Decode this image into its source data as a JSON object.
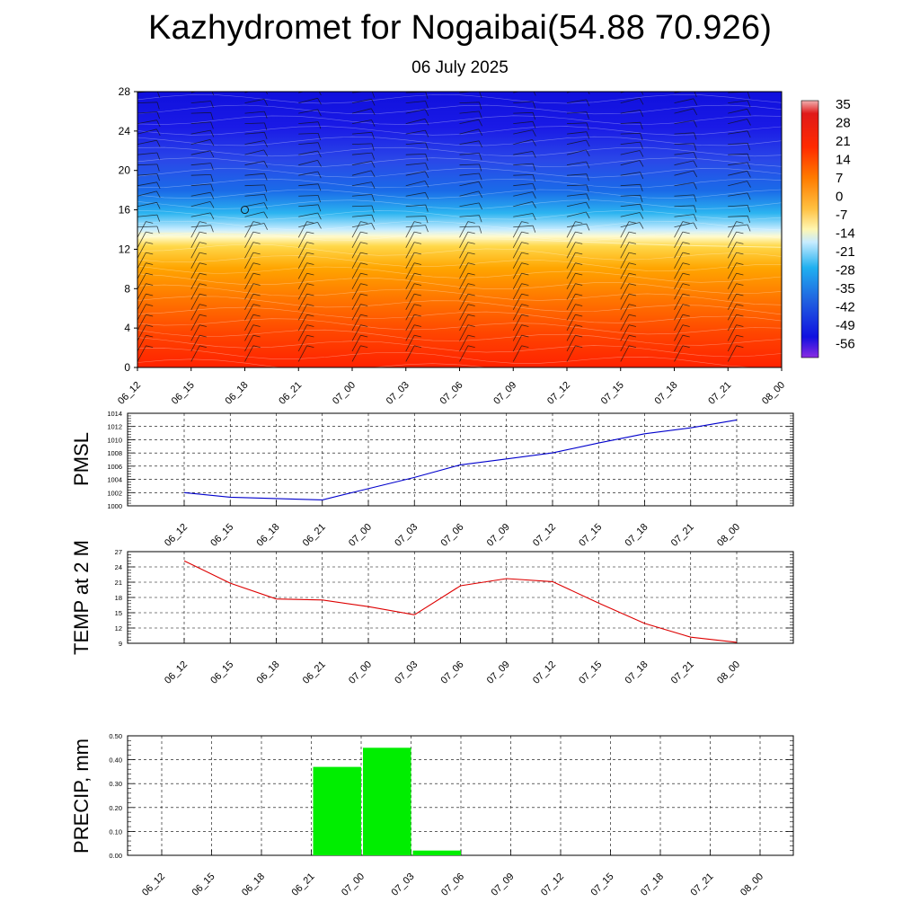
{
  "header": {
    "title": "Kazhydromet for Nogaibai(54.88 70.926)",
    "subtitle": "06 July 2025"
  },
  "time_labels": [
    "06_12",
    "06_15",
    "06_18",
    "06_21",
    "07_00",
    "07_03",
    "07_06",
    "07_09",
    "07_12",
    "07_15",
    "07_18",
    "07_21",
    "08_00"
  ],
  "colors": {
    "pmsl_line": "#0000cc",
    "temp_line": "#dd0000",
    "precip_bar": "#00ee00"
  },
  "chart_data": [
    {
      "id": "cross-section",
      "type": "heatmap",
      "title": "",
      "x": [
        "06_12",
        "06_15",
        "06_18",
        "06_21",
        "07_00",
        "07_03",
        "07_06",
        "07_09",
        "07_12",
        "07_15",
        "07_18",
        "07_21",
        "08_00"
      ],
      "ylim": [
        0,
        28
      ],
      "yticks": [
        0,
        4,
        8,
        12,
        16,
        20,
        24,
        28
      ],
      "colorbar_labels": [
        "35",
        "28",
        "21",
        "14",
        "7",
        "0",
        "-7",
        "-14",
        "-21",
        "-28",
        "-35",
        "-42",
        "-49",
        "-56"
      ],
      "freezing_level": [
        13.6,
        13.6,
        13.5,
        13.4,
        13.3,
        13.2,
        13.1,
        13.0,
        12.8,
        12.6,
        12.4,
        12.3,
        12.2
      ],
      "wind_barbs": true
    },
    {
      "id": "pmsl",
      "type": "line",
      "ylabel": "PMSL",
      "ylim": [
        1000,
        1014
      ],
      "yticks": [
        1000,
        1002,
        1004,
        1006,
        1008,
        1010,
        1012,
        1014
      ],
      "x": [
        "06_12",
        "06_15",
        "06_18",
        "06_21",
        "07_00",
        "07_03",
        "07_06",
        "07_09",
        "07_12",
        "07_15",
        "07_18",
        "07_21",
        "08_00"
      ],
      "values": [
        1002.0,
        1001.3,
        1001.1,
        1000.9,
        1002.6,
        1004.3,
        1006.2,
        1007.1,
        1008.0,
        1009.5,
        1010.9,
        1011.8,
        1013.0
      ],
      "grid": true
    },
    {
      "id": "temp2m",
      "type": "line",
      "ylabel": "TEMP at 2 M",
      "ylim": [
        9,
        27
      ],
      "yticks": [
        9,
        12,
        15,
        18,
        21,
        24,
        27
      ],
      "x": [
        "06_12",
        "06_15",
        "06_18",
        "06_21",
        "07_00",
        "07_03",
        "07_06",
        "07_09",
        "07_12",
        "07_15",
        "07_18",
        "07_21",
        "08_00"
      ],
      "values": [
        25.2,
        20.8,
        17.7,
        17.5,
        16.2,
        14.6,
        20.3,
        21.7,
        21.1,
        16.9,
        12.9,
        10.2,
        9.2
      ],
      "grid": true
    },
    {
      "id": "precip",
      "type": "bar",
      "ylabel": "PRECIP, mm",
      "ylim": [
        0,
        0.5
      ],
      "yticks": [
        "0.00",
        "0.10",
        "0.20",
        "0.30",
        "0.40",
        "0.50"
      ],
      "categories": [
        "06_12",
        "06_15",
        "06_18",
        "06_21",
        "07_00",
        "07_03",
        "07_06",
        "07_09",
        "07_12",
        "07_15",
        "07_18",
        "07_21",
        "08_00"
      ],
      "values": [
        0,
        0,
        0,
        0.37,
        0.45,
        0.02,
        0,
        0,
        0,
        0,
        0,
        0,
        0
      ],
      "grid": true
    }
  ]
}
